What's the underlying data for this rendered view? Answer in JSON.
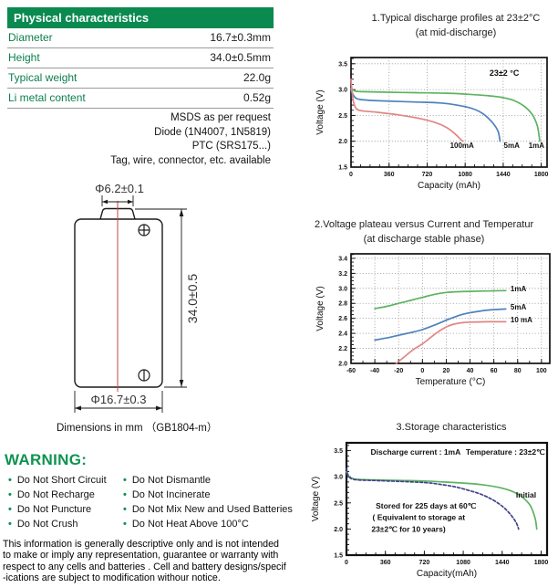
{
  "icons": {
    "bullet": "•",
    "plus_terminal": "plus-terminal-icon",
    "minus_terminal": "minus-terminal-icon"
  },
  "spec_table": {
    "header": "Physical characteristics",
    "rows": [
      {
        "label": "Diameter",
        "value": "16.7±0.3mm"
      },
      {
        "label": "Height",
        "value": "34.0±0.5mm"
      },
      {
        "label": "Typical weight",
        "value": "22.0g"
      },
      {
        "label": "Li metal content",
        "value": "0.52g"
      }
    ],
    "notes": [
      "MSDS as per request",
      "Diode (1N4007, 1N5819)",
      "PTC (SRS175...)",
      "Tag, wire, connector, etc. available"
    ]
  },
  "drawing": {
    "top_dim": "Φ6.2±0.1",
    "height_dim": "34.0±0.5",
    "bottom_dim": "Φ16.7±0.3",
    "caption": "Dimensions in mm （GB1804-m）"
  },
  "warning": {
    "title": "WARNING:",
    "col1": [
      "Do Not Short Circuit",
      "Do Not Recharge",
      "Do Not Puncture",
      "Do Not Crush"
    ],
    "col2": [
      "Do Not Dismantle",
      "Do Not Incinerate",
      "Do Not Mix New and Used Batteries",
      "Do Not Heat Above 100°C"
    ]
  },
  "disclaimer": {
    "lines": [
      "This information is generally descriptive only and is not intended",
      "to make or imply any representation, guarantee or warranty with",
      "respect to any cells and batteries . Cell and battery designs/specif",
      "-ications are subject to modification withour notice."
    ]
  },
  "chart_data": [
    {
      "type": "line",
      "title": "1.Typical discharge profiles at 23±2°C",
      "subtitle": "(at mid-discharge)",
      "xlabel": "Capacity (mAh)",
      "ylabel": "Voltage (V)",
      "xlim": [
        0,
        1855
      ],
      "ylim": [
        1.5,
        3.62
      ],
      "xticks": [
        "0",
        "360",
        "720",
        "1080",
        "1440",
        "1800"
      ],
      "yticks": [
        "1.5",
        "2.0",
        "2.5",
        "3.0",
        "3.5"
      ],
      "xminor": 90,
      "yminor": 0.1,
      "grid": true,
      "box": true,
      "box_width": 1.7,
      "series": [
        {
          "name": "1mA",
          "color": "#5cb360",
          "points": [
            [
              0,
              3.02
            ],
            [
              15,
              3.0
            ],
            [
              40,
              2.97
            ],
            [
              100,
              2.96
            ],
            [
              300,
              2.95
            ],
            [
              600,
              2.94
            ],
            [
              900,
              2.93
            ],
            [
              1100,
              2.91
            ],
            [
              1300,
              2.88
            ],
            [
              1450,
              2.84
            ],
            [
              1550,
              2.78
            ],
            [
              1650,
              2.66
            ],
            [
              1720,
              2.5
            ],
            [
              1765,
              2.28
            ],
            [
              1786,
              2.0
            ]
          ]
        },
        {
          "name": "5mA",
          "color": "#4d82bd",
          "points": [
            [
              0,
              3.0
            ],
            [
              20,
              2.9
            ],
            [
              50,
              2.83
            ],
            [
              120,
              2.8
            ],
            [
              300,
              2.78
            ],
            [
              600,
              2.76
            ],
            [
              850,
              2.74
            ],
            [
              1000,
              2.7
            ],
            [
              1150,
              2.63
            ],
            [
              1250,
              2.53
            ],
            [
              1330,
              2.38
            ],
            [
              1390,
              2.2
            ],
            [
              1410,
              2.0
            ]
          ]
        },
        {
          "name": "100mA",
          "color": "#e18585",
          "points": [
            [
              0,
              3.2
            ],
            [
              10,
              2.95
            ],
            [
              25,
              2.75
            ],
            [
              50,
              2.63
            ],
            [
              100,
              2.59
            ],
            [
              250,
              2.56
            ],
            [
              450,
              2.51
            ],
            [
              650,
              2.44
            ],
            [
              800,
              2.36
            ],
            [
              900,
              2.27
            ],
            [
              980,
              2.15
            ],
            [
              1040,
              2.03
            ],
            [
              1060,
              2.0
            ]
          ]
        }
      ],
      "annotations": [
        {
          "text": "23±2 °C",
          "x": 1450,
          "y": 3.27,
          "size": 9
        },
        {
          "text": "100mA",
          "x": 1050,
          "y": 1.87,
          "size": 8
        },
        {
          "text": "5mA",
          "x": 1520,
          "y": 1.87,
          "size": 8
        },
        {
          "text": "1mA",
          "x": 1755,
          "y": 1.87,
          "size": 8
        }
      ]
    },
    {
      "type": "line",
      "title": "2.Voltage plateau versus Current and Temperatur",
      "subtitle": "(at discharge stable phase)",
      "xlabel": "Temperature (°C)",
      "ylabel": "Voltage (V)",
      "xlim": [
        -60,
        107
      ],
      "ylim": [
        2.0,
        3.46
      ],
      "xticks": [
        "-60",
        "-40",
        "-20",
        "0",
        "20",
        "40",
        "60",
        "80",
        "100"
      ],
      "yticks": [
        "2.0",
        "2.2",
        "2.4",
        "2.6",
        "2.8",
        "3.0",
        "3.2",
        "3.4"
      ],
      "xminor": 10,
      "yminor": 0.05,
      "grid": true,
      "box": true,
      "box_width": 1.7,
      "series": [
        {
          "name": "1mA",
          "color": "#5cb360",
          "points": [
            [
              -40,
              2.73
            ],
            [
              -30,
              2.76
            ],
            [
              -20,
              2.8
            ],
            [
              -10,
              2.84
            ],
            [
              0,
              2.88
            ],
            [
              10,
              2.92
            ],
            [
              20,
              2.945
            ],
            [
              30,
              2.955
            ],
            [
              40,
              2.96
            ],
            [
              55,
              2.965
            ],
            [
              70,
              2.97
            ]
          ]
        },
        {
          "name": "5mA",
          "color": "#4d82bd",
          "points": [
            [
              -40,
              2.31
            ],
            [
              -30,
              2.34
            ],
            [
              -20,
              2.375
            ],
            [
              -10,
              2.41
            ],
            [
              0,
              2.45
            ],
            [
              10,
              2.51
            ],
            [
              20,
              2.575
            ],
            [
              30,
              2.635
            ],
            [
              40,
              2.675
            ],
            [
              55,
              2.71
            ],
            [
              70,
              2.725
            ]
          ]
        },
        {
          "name": "10 mA",
          "color": "#e18585",
          "points": [
            [
              -22,
              2.0
            ],
            [
              -15,
              2.09
            ],
            [
              -8,
              2.18
            ],
            [
              0,
              2.26
            ],
            [
              8,
              2.36
            ],
            [
              15,
              2.44
            ],
            [
              22,
              2.5
            ],
            [
              30,
              2.535
            ],
            [
              40,
              2.55
            ],
            [
              55,
              2.555
            ],
            [
              70,
              2.555
            ]
          ]
        }
      ],
      "annotations": [
        {
          "text": "1mA",
          "x": 74,
          "y": 2.96,
          "size": 8,
          "anchor": "start"
        },
        {
          "text": "5mA",
          "x": 74,
          "y": 2.72,
          "size": 8,
          "anchor": "start"
        },
        {
          "text": "10 mA",
          "x": 74,
          "y": 2.55,
          "size": 8,
          "anchor": "start"
        }
      ]
    },
    {
      "type": "line",
      "title": "3.Storage characteristics",
      "subtitle": "",
      "xlabel": "Capacity(mAh)",
      "ylabel": "Voltage (V)",
      "xlim": [
        0,
        1855
      ],
      "ylim": [
        1.5,
        3.65
      ],
      "xticks": [
        "0",
        "360",
        "720",
        "1080",
        "1440",
        "1800"
      ],
      "yticks": [
        "1.5",
        "2.0",
        "2.5",
        "3.0",
        "3.5"
      ],
      "xminor": 90,
      "yminor": 0.1,
      "grid": false,
      "box": true,
      "box_width": 2.2,
      "series": [
        {
          "name": "Initial",
          "color": "#5cb360",
          "points": [
            [
              0,
              3.1
            ],
            [
              15,
              3.02
            ],
            [
              40,
              2.98
            ],
            [
              100,
              2.95
            ],
            [
              250,
              2.94
            ],
            [
              500,
              2.93
            ],
            [
              720,
              2.92
            ],
            [
              900,
              2.9
            ],
            [
              1080,
              2.88
            ],
            [
              1250,
              2.85
            ],
            [
              1400,
              2.8
            ],
            [
              1520,
              2.73
            ],
            [
              1620,
              2.62
            ],
            [
              1700,
              2.45
            ],
            [
              1745,
              2.2
            ],
            [
              1760,
              2.0
            ]
          ]
        },
        {
          "name": "Stored",
          "color": "#42428c",
          "dash": "3 2.2",
          "points": [
            [
              0,
              3.16
            ],
            [
              15,
              3.03
            ],
            [
              40,
              2.97
            ],
            [
              100,
              2.94
            ],
            [
              250,
              2.93
            ],
            [
              500,
              2.91
            ],
            [
              720,
              2.89
            ],
            [
              850,
              2.86
            ],
            [
              1000,
              2.81
            ],
            [
              1130,
              2.74
            ],
            [
              1250,
              2.66
            ],
            [
              1360,
              2.55
            ],
            [
              1450,
              2.42
            ],
            [
              1520,
              2.27
            ],
            [
              1570,
              2.12
            ],
            [
              1592,
              2.0
            ]
          ]
        }
      ],
      "annotations": [
        {
          "text": "Discharge current : 1mA",
          "x": 640,
          "y": 3.42,
          "size": 8.5
        },
        {
          "text": "Temperature : 23±2℃",
          "x": 1470,
          "y": 3.42,
          "size": 8.5
        },
        {
          "text": "Initial",
          "x": 1661,
          "y": 2.6,
          "size": 8.5
        },
        {
          "text": "Stored for 225 days at 60℃",
          "x": 735,
          "y": 2.39,
          "size": 8.5
        },
        {
          "text": "( Equivalent to storage at",
          "x": 669,
          "y": 2.17,
          "size": 8.5
        },
        {
          "text": "23±2℃ for 10 years)",
          "x": 573,
          "y": 1.95,
          "size": 8.5
        }
      ]
    }
  ]
}
